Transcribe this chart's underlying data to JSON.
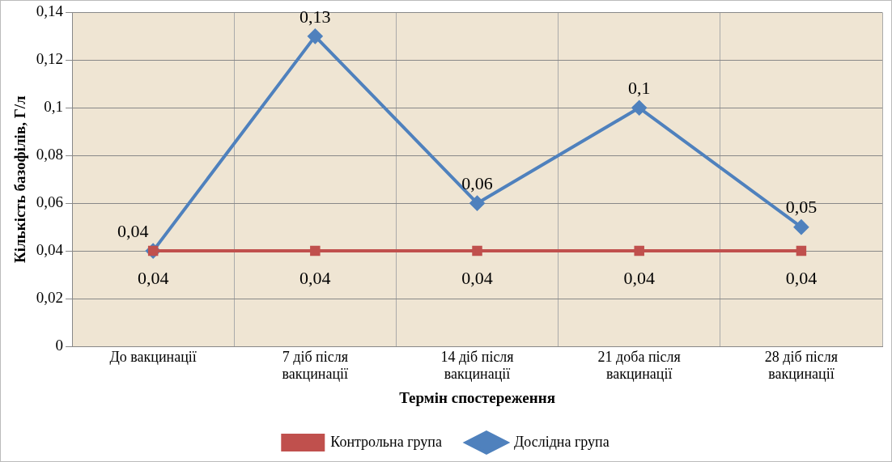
{
  "chart_data": {
    "type": "line",
    "xlabel": "Термін спостереження",
    "ylabel": "Кількість базофілів, Г/л",
    "categories": [
      "До вакцинації",
      "7 діб після вакцинації",
      "14 діб після вакцинації",
      "21 доба після вакцинації",
      "28 діб після вакцинації"
    ],
    "series": [
      {
        "name": "Контрольна група",
        "color": "#c0504d",
        "marker": "square",
        "values": [
          0.04,
          0.04,
          0.04,
          0.04,
          0.04
        ],
        "value_labels": [
          "0,04",
          "0,04",
          "0,04",
          "0,04",
          "0,04"
        ]
      },
      {
        "name": "Дослідна група",
        "color": "#4f81bd",
        "marker": "diamond",
        "values": [
          0.04,
          0.13,
          0.06,
          0.1,
          0.05
        ],
        "value_labels": [
          "0,04",
          "0,13",
          "0,06",
          "0,1",
          "0,05"
        ]
      }
    ],
    "ylim": [
      0,
      0.14
    ],
    "yticks": [
      {
        "value": 0,
        "label": "0"
      },
      {
        "value": 0.02,
        "label": "0,02"
      },
      {
        "value": 0.04,
        "label": "0,04"
      },
      {
        "value": 0.06,
        "label": "0,06"
      },
      {
        "value": 0.08,
        "label": "0,08"
      },
      {
        "value": 0.1,
        "label": "0,1"
      },
      {
        "value": 0.12,
        "label": "0,12"
      },
      {
        "value": 0.14,
        "label": "0,14"
      }
    ],
    "grid": true,
    "legend": "bottom",
    "line_style": "solid"
  }
}
